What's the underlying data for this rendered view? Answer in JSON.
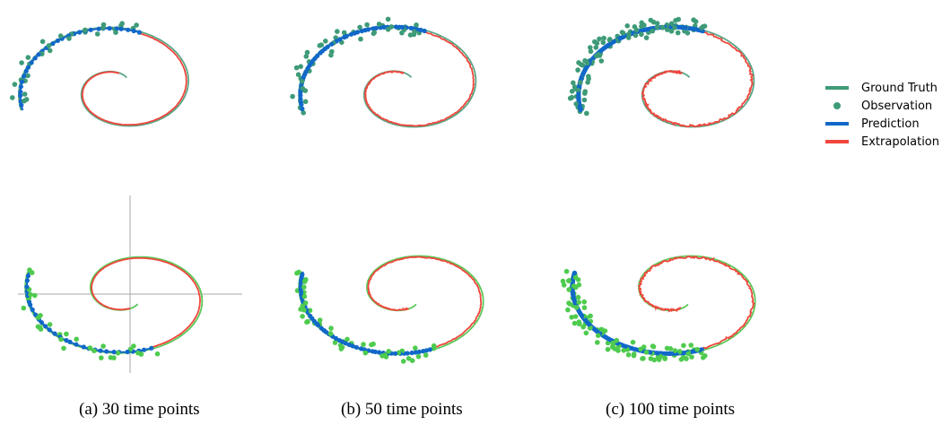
{
  "chart_data": {
    "type": "scatter",
    "legend": {
      "placement": "right",
      "entries": [
        {
          "label": "Ground Truth",
          "kind": "line",
          "color": "#3e9b77"
        },
        {
          "label": "Observation",
          "kind": "marker",
          "color": "#3e9b77"
        },
        {
          "label": "Prediction",
          "kind": "line",
          "color": "#1168c9"
        },
        {
          "label": "Extrapolation",
          "kind": "line",
          "color": "#f0463c"
        }
      ]
    },
    "colors": {
      "ground_truth_top": "#5aa686",
      "observation_top": "#3e9b77",
      "ground_truth_bottom": "#5cc85a",
      "observation_bottom": "#4ecb4e",
      "prediction": "#1168c9",
      "extrapolation": "#f0463c",
      "axis": "#aaaaaa"
    },
    "captions": [
      {
        "label": "(a) 30 time points",
        "n_points": 30
      },
      {
        "label": "(b) 50 time points",
        "n_points": 50
      },
      {
        "label": "(c) 100 time points",
        "n_points": 100
      }
    ],
    "rows": [
      {
        "row": "top",
        "direction": "counterclockwise",
        "show_axes": false
      },
      {
        "row": "bottom",
        "direction": "clockwise",
        "show_axes": [
          true,
          false,
          false
        ]
      }
    ],
    "grid": false
  }
}
